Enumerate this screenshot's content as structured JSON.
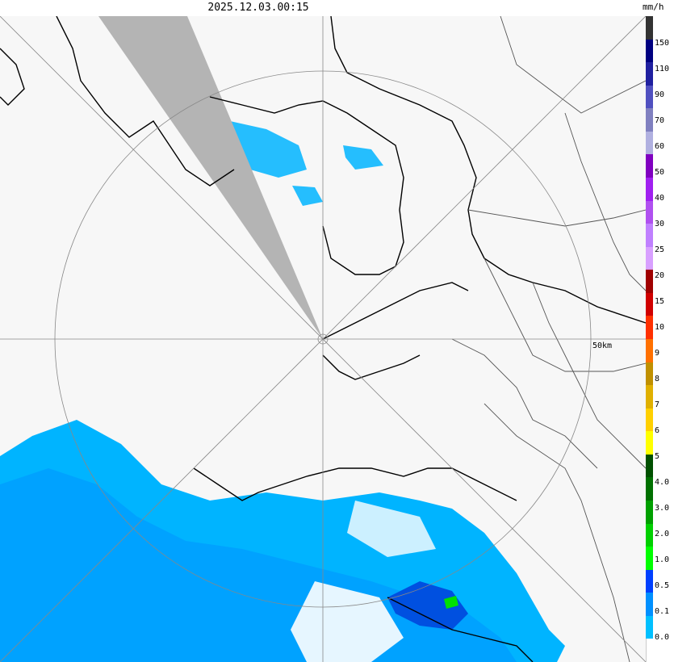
{
  "header": {
    "timestamp": "2025.12.03.00:15",
    "unit": "mm/h"
  },
  "map": {
    "range_ring_label": "50km",
    "background": "#f7f7f7",
    "blocked_sector_color": "#b4b4b4",
    "coast_color": "#000000",
    "boundary_color": "#555555"
  },
  "legend": {
    "bands": [
      {
        "color": "#333333",
        "label": "150"
      },
      {
        "color": "#000080",
        "label": "110"
      },
      {
        "color": "#2020a0",
        "label": "90"
      },
      {
        "color": "#5050c0",
        "label": "70"
      },
      {
        "color": "#8080c0",
        "label": "60"
      },
      {
        "color": "#b0b0e0",
        "label": "50"
      },
      {
        "color": "#8000c0",
        "label": "40"
      },
      {
        "color": "#a020f0",
        "label": "30"
      },
      {
        "color": "#b050f0",
        "label": "25"
      },
      {
        "color": "#c080ff",
        "label": "20"
      },
      {
        "color": "#d8a0ff",
        "label": "15"
      },
      {
        "color": "#a00000",
        "label": "10"
      },
      {
        "color": "#d00000",
        "label": "9"
      },
      {
        "color": "#ff3000",
        "label": "8"
      },
      {
        "color": "#ff7000",
        "label": "7"
      },
      {
        "color": "#c09000",
        "label": "6"
      },
      {
        "color": "#e0b000",
        "label": "5"
      },
      {
        "color": "#ffd000",
        "label": "4.0"
      },
      {
        "color": "#ffff00",
        "label": "3.0"
      },
      {
        "color": "#005000",
        "label": "2.0"
      },
      {
        "color": "#007000",
        "label": "1.0"
      },
      {
        "color": "#00a000",
        "label": "0.5"
      },
      {
        "color": "#00d000",
        "label": "0.1"
      },
      {
        "color": "#00ff00",
        "label": "0.0"
      },
      {
        "color": "#0040ff",
        "label": ""
      },
      {
        "color": "#0090ff",
        "label": ""
      },
      {
        "color": "#00c0ff",
        "label": ""
      },
      {
        "color": "#ffffff",
        "label": ""
      }
    ],
    "ticks": [
      "150",
      "110",
      "90",
      "70",
      "60",
      "50",
      "40",
      "30",
      "25",
      "20",
      "15",
      "10",
      "9",
      "8",
      "7",
      "6",
      "5",
      "4.0",
      "3.0",
      "2.0",
      "1.0",
      "0.5",
      "0.1",
      "0.0"
    ]
  }
}
